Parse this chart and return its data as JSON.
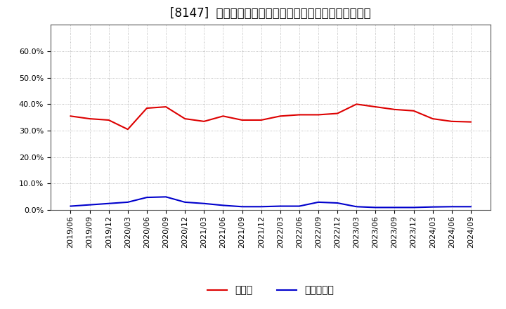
{
  "title": "[8147]  現領金、有利子負債の総資産に対する比率の推移",
  "background_color": "#ffffff",
  "plot_bg_color": "#ffffff",
  "grid_color": "#aaaaaa",
  "legend_labels": [
    "現領金",
    "有利子負債"
  ],
  "line_colors": [
    "#dd0000",
    "#0000cc"
  ],
  "dates": [
    "2019/06",
    "2019/09",
    "2019/12",
    "2020/03",
    "2020/06",
    "2020/09",
    "2020/12",
    "2021/03",
    "2021/06",
    "2021/09",
    "2021/12",
    "2022/03",
    "2022/06",
    "2022/09",
    "2022/12",
    "2023/03",
    "2023/06",
    "2023/09",
    "2023/12",
    "2024/03",
    "2024/06",
    "2024/09"
  ],
  "cash_ratio": [
    0.355,
    0.345,
    0.34,
    0.305,
    0.385,
    0.39,
    0.345,
    0.335,
    0.355,
    0.34,
    0.34,
    0.355,
    0.36,
    0.36,
    0.365,
    0.4,
    0.39,
    0.38,
    0.375,
    0.345,
    0.335,
    0.333
  ],
  "debt_ratio": [
    0.015,
    0.02,
    0.025,
    0.03,
    0.048,
    0.05,
    0.03,
    0.025,
    0.018,
    0.013,
    0.013,
    0.015,
    0.015,
    0.03,
    0.027,
    0.013,
    0.01,
    0.01,
    0.01,
    0.012,
    0.013,
    0.013
  ],
  "ylim": [
    0.0,
    0.7
  ],
  "yticks": [
    0.0,
    0.1,
    0.2,
    0.3,
    0.4,
    0.5,
    0.6
  ],
  "ytick_labels": [
    "0.0%",
    "10.0%",
    "20.0%",
    "30.0%",
    "40.0%",
    "50.0%",
    "60.0%"
  ],
  "title_fontsize": 12,
  "tick_fontsize": 8,
  "legend_fontsize": 10,
  "line_width": 1.5
}
